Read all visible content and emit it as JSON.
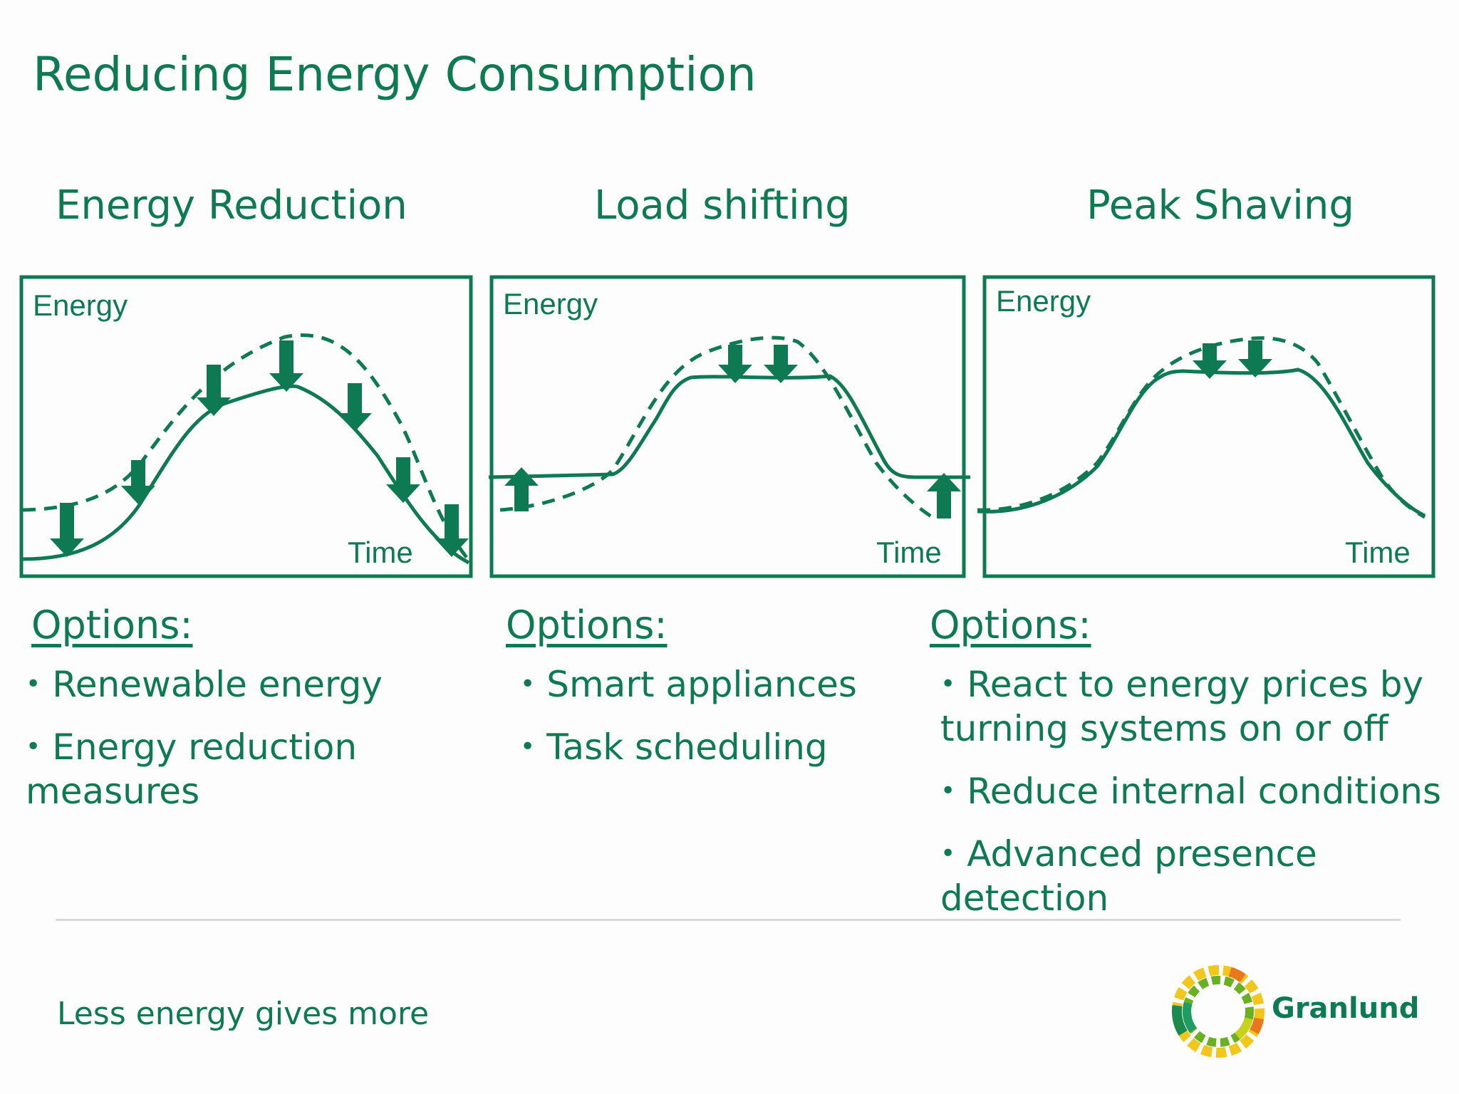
{
  "title": "Reducing Energy Consumption",
  "columns": [
    {
      "heading": "Energy Reduction",
      "y_label": "Energy",
      "x_label": "Time",
      "options_heading": "Options:",
      "options": [
        "Renewable energy",
        "Energy reduction measures"
      ]
    },
    {
      "heading": "Load shifting",
      "y_label": "Energy",
      "x_label": "Time",
      "options_heading": "Options:",
      "options": [
        "Smart appliances",
        "Task scheduling"
      ]
    },
    {
      "heading": "Peak Shaving",
      "y_label": "Energy",
      "x_label": "Time",
      "options_heading": "Options:",
      "options": [
        "React to energy prices by turning systems on or off",
        "Reduce internal conditions",
        "Advanced presence detection"
      ]
    }
  ],
  "footer": {
    "tagline": "Less energy gives more",
    "brand": "Granlund"
  },
  "colors": {
    "primary": "#0e7a54",
    "divider": "#d9d9d9"
  },
  "icons": [
    "down-arrow-icon",
    "up-arrow-icon",
    "granlund-logo-icon"
  ]
}
